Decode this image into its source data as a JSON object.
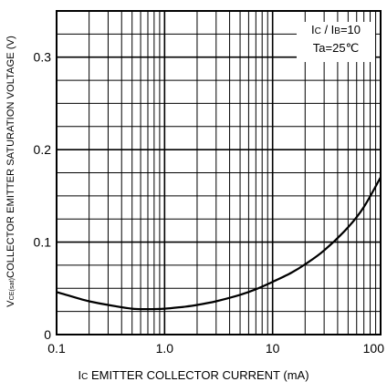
{
  "chart_data": {
    "type": "line",
    "xscale": "log",
    "xlim": [
      0.1,
      100
    ],
    "ylim": [
      0,
      0.35
    ],
    "xticks": [
      "0.1",
      "1.0",
      "10",
      "100"
    ],
    "yticks": [
      "0",
      "0.1",
      "0.2",
      "0.3"
    ],
    "ylabel": {
      "symbol": "V",
      "sub": "CE(sat)",
      "text": "COLLECTOR EMITTER SATURATION VOLTAGE (V)"
    },
    "xlabel": {
      "symbol": "I",
      "sub": "C",
      "text": " EMITTER COLLECTOR CURRENT (mA)"
    },
    "legend": [
      {
        "pre": "I",
        "sub1": "C",
        "mid": " / I",
        "sub2": "B",
        "post": "=10"
      },
      {
        "text": "Ta=25℃"
      }
    ],
    "grid": true,
    "series": [
      {
        "x": [
          0.1,
          0.15,
          0.2,
          0.3,
          0.5,
          0.7,
          1.0,
          1.5,
          2,
          3,
          5,
          7,
          10,
          15,
          20,
          30,
          50,
          70,
          100
        ],
        "y": [
          0.046,
          0.04,
          0.036,
          0.032,
          0.028,
          0.0275,
          0.028,
          0.03,
          0.032,
          0.036,
          0.043,
          0.049,
          0.057,
          0.067,
          0.076,
          0.091,
          0.116,
          0.138,
          0.17
        ]
      }
    ]
  }
}
